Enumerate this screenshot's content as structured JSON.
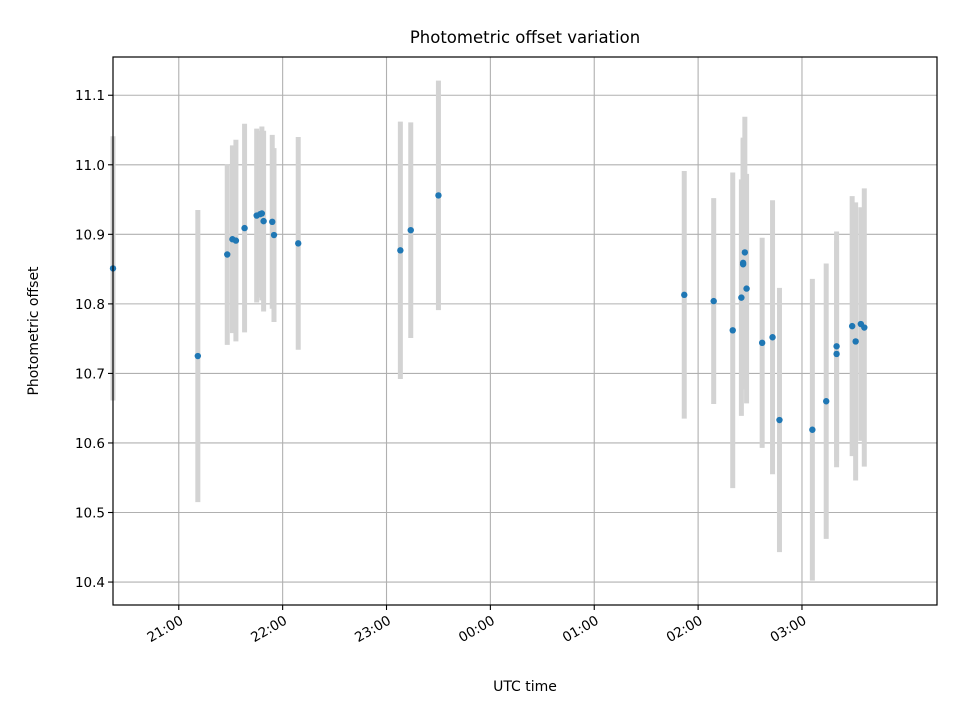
{
  "chart_data": {
    "type": "scatter",
    "title": "Photometric offset variation",
    "xlabel": "UTC time",
    "ylabel": "Photometric offset",
    "grid": true,
    "colors": {
      "points": "#1f77b4",
      "errorbars": "#d3d3d3",
      "grid": "#b0b0b0",
      "axes": "#000000"
    },
    "xlim": [
      "20:22",
      "04:18"
    ],
    "ylim": [
      10.367,
      11.155
    ],
    "x_ticks": [
      "21:00",
      "22:00",
      "23:00",
      "00:00",
      "01:00",
      "02:00",
      "03:00"
    ],
    "y_ticks": [
      "10.4",
      "10.5",
      "10.6",
      "10.7",
      "10.8",
      "10.9",
      "11.0",
      "11.1"
    ],
    "series": [
      {
        "error_style": "vertical bars",
        "x": [
          "20:22",
          "21:11",
          "21:28",
          "21:31",
          "21:33",
          "21:38",
          "21:45",
          "21:47",
          "21:48",
          "21:49",
          "21:54",
          "21:55",
          "22:09",
          "23:08",
          "23:14",
          "23:30",
          "01:52",
          "02:09",
          "02:20",
          "02:25",
          "02:26",
          "02:26",
          "02:27",
          "02:28",
          "02:37",
          "02:43",
          "02:47",
          "03:06",
          "03:14",
          "03:20",
          "03:20",
          "03:29",
          "03:31",
          "03:34",
          "03:36"
        ],
        "y": [
          10.851,
          10.725,
          10.871,
          10.893,
          10.891,
          10.909,
          10.927,
          10.929,
          10.93,
          10.919,
          10.918,
          10.899,
          10.887,
          10.877,
          10.906,
          10.956,
          10.813,
          10.804,
          10.762,
          10.809,
          10.859,
          10.857,
          10.874,
          10.822,
          10.744,
          10.752,
          10.633,
          10.619,
          10.66,
          10.739,
          10.728,
          10.768,
          10.746,
          10.771,
          10.766
        ],
        "yerr": [
          0.19,
          0.21,
          0.13,
          0.135,
          0.145,
          0.15,
          0.125,
          0.12,
          0.125,
          0.13,
          0.125,
          0.125,
          0.153,
          0.185,
          0.155,
          0.165,
          0.178,
          0.148,
          0.227,
          0.17,
          0.18,
          0.18,
          0.195,
          0.165,
          0.151,
          0.197,
          0.19,
          0.217,
          0.198,
          0.165,
          0.163,
          0.187,
          0.2,
          0.168,
          0.2
        ]
      }
    ]
  }
}
